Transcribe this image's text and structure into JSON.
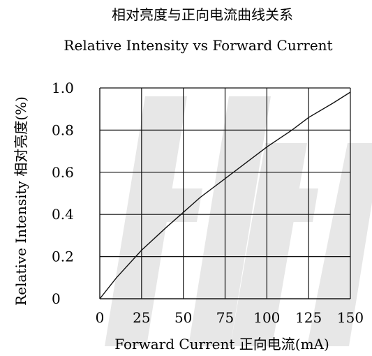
{
  "chart_data": {
    "type": "line",
    "title": "相对亮度与正向电流曲线关系",
    "subtitle": "Relative Intensity vs Forward  Current",
    "xlabel": "Forward  Current 正向电流(mA)",
    "ylabel": "Relative Intensity  相对亮度(%)",
    "xlim": [
      0,
      150
    ],
    "ylim": [
      0,
      1.0
    ],
    "x_ticks": [
      "0",
      "25",
      "50",
      "75",
      "100",
      "125",
      "150"
    ],
    "y_ticks": [
      "0",
      "0.2",
      "0.4",
      "0.6",
      "0.8",
      "1.0"
    ],
    "grid": true,
    "legend": "none",
    "series": [
      {
        "x": [
          0,
          10,
          25,
          40,
          50,
          60,
          75,
          90,
          100,
          115,
          125,
          140,
          150
        ],
        "y": [
          0,
          0.1,
          0.23,
          0.34,
          0.41,
          0.48,
          0.57,
          0.66,
          0.72,
          0.8,
          0.86,
          0.93,
          0.98
        ]
      }
    ]
  },
  "watermark": {
    "text": "HH",
    "color": "#cccccc"
  },
  "colors": {
    "line": "#111111",
    "grid": "#111111",
    "background": "#ffffff"
  }
}
